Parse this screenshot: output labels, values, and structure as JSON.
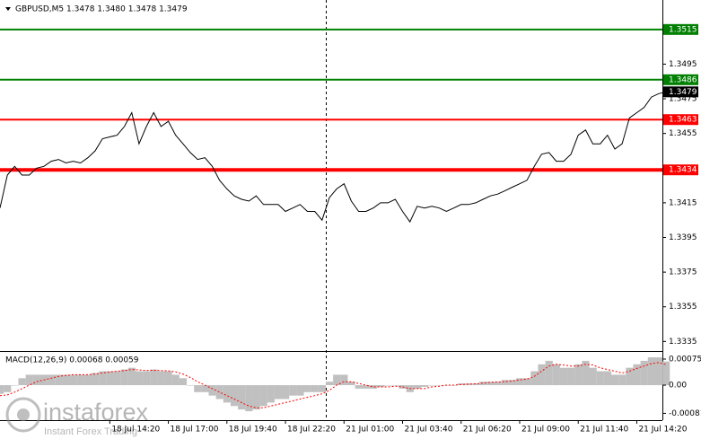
{
  "chart_data": [
    {
      "type": "line",
      "title": "GBPUSD,M5  1.3478 1.3480 1.3478 1.3479",
      "color": "#000000",
      "x": [
        0,
        4,
        8,
        12,
        16,
        20,
        24,
        28,
        32,
        36,
        40,
        44,
        48,
        52,
        56,
        60,
        64,
        68,
        72,
        76,
        80,
        84,
        88,
        92,
        96,
        100,
        104,
        108,
        112,
        116,
        120,
        124,
        128,
        132,
        136,
        140,
        144,
        148,
        152,
        156,
        160,
        164,
        168,
        172,
        176,
        180,
        184,
        188,
        192,
        196,
        200,
        204,
        208,
        212,
        216,
        220,
        224,
        228,
        232,
        236,
        240,
        244,
        248,
        252,
        256,
        260,
        264,
        268,
        272,
        276,
        280,
        284,
        288,
        292,
        296,
        300,
        304,
        308,
        312,
        316,
        320,
        324,
        328,
        332,
        336,
        340,
        344,
        348,
        352,
        356,
        360,
        364
      ],
      "values": [
        1.3412,
        1.3431,
        1.3436,
        1.3431,
        1.3431,
        1.3435,
        1.3436,
        1.3439,
        1.344,
        1.3438,
        1.3439,
        1.3438,
        1.3441,
        1.3445,
        1.3452,
        1.3453,
        1.3454,
        1.3459,
        1.3467,
        1.3449,
        1.3459,
        1.3467,
        1.3459,
        1.3462,
        1.3454,
        1.3449,
        1.3444,
        1.344,
        1.3441,
        1.3436,
        1.3428,
        1.3423,
        1.3419,
        1.3417,
        1.3416,
        1.3419,
        1.3414,
        1.3414,
        1.3414,
        1.341,
        1.3412,
        1.3414,
        1.341,
        1.341,
        1.3405,
        1.3418,
        1.3423,
        1.3426,
        1.3416,
        1.341,
        1.341,
        1.3412,
        1.3415,
        1.3415,
        1.3417,
        1.341,
        1.3404,
        1.3413,
        1.3412,
        1.3413,
        1.3412,
        1.341,
        1.3412,
        1.3414,
        1.3414,
        1.3415,
        1.3417,
        1.3419,
        1.342,
        1.3422,
        1.3424,
        1.3426,
        1.3428,
        1.3436,
        1.3443,
        1.3444,
        1.3439,
        1.3439,
        1.3443,
        1.3454,
        1.3457,
        1.3449,
        1.3449,
        1.3454,
        1.3446,
        1.3449,
        1.3464,
        1.3467,
        1.347,
        1.3476,
        1.3478,
        1.3479
      ],
      "xlim": [
        0,
        362
      ],
      "xticks": [
        {
          "value": 60,
          "label": "18 Jul 14:20"
        },
        {
          "value": 92,
          "label": "18 Jul 17:00"
        },
        {
          "value": 124,
          "label": "18 Jul 19:40"
        },
        {
          "value": 156,
          "label": "18 Jul 22:20"
        },
        {
          "value": 188,
          "label": "21 Jul 01:00"
        },
        {
          "value": 220,
          "label": "21 Jul 03:40"
        },
        {
          "value": 252,
          "label": "21 Jul 06:20"
        },
        {
          "value": 284,
          "label": "21 Jul 09:00"
        },
        {
          "value": 316,
          "label": "21 Jul 11:40"
        },
        {
          "value": 348,
          "label": "21 Jul 14:20"
        }
      ],
      "ylim": [
        1.333,
        1.3532
      ],
      "yticks": [
        1.3495,
        1.3475,
        1.3455,
        1.3415,
        1.3395,
        1.3375,
        1.3355,
        1.3335
      ],
      "levels": [
        {
          "value": 1.3515,
          "color": "#008000"
        },
        {
          "value": 1.3486,
          "color": "#008000"
        },
        {
          "value": 1.3463,
          "color": "#ff0000"
        },
        {
          "value": 1.3434,
          "color": "#ff0000"
        }
      ],
      "current": 1.3479
    },
    {
      "type": "macd",
      "title": "MACD(12,26,9) 0.00068 0.00059",
      "series": [
        {
          "color": "#c0c0c0",
          "values": [
            -0.00025,
            -0.0002,
            0,
            0.0002,
            0.0003,
            0.0003,
            0.0003,
            0.0003,
            0.0003,
            0.0003,
            0.0003,
            0.0003,
            0.0003,
            0.00035,
            0.0004,
            0.0004,
            0.0004,
            0.00045,
            0.0005,
            0.0004,
            0.0004,
            0.00045,
            0.0004,
            0.0004,
            0.0003,
            0.0002,
            0,
            -0.0002,
            -0.0002,
            -0.0003,
            -0.0004,
            -0.0005,
            -0.0006,
            -0.0007,
            -0.00075,
            -0.0007,
            -0.0006,
            -0.0005,
            -0.0004,
            -0.0004,
            -0.0003,
            -0.0003,
            -0.0002,
            -0.0002,
            -0.0002,
            0.0001,
            0.0003,
            0.0003,
            0.0001,
            -0.0001,
            -0.0001,
            -0.0001,
            -5e-05,
            0,
            0,
            -0.0001,
            -0.0002,
            -0.0001,
            -5e-05,
            0,
            0,
            0,
            0,
            5e-05,
            5e-05,
            5e-05,
            0.0001,
            0.0001,
            0.0001,
            0.00015,
            0.00015,
            0.0002,
            0.0002,
            0.0004,
            0.0006,
            0.0007,
            0.0006,
            0.0005,
            0.0005,
            0.0006,
            0.0007,
            0.0005,
            0.0004,
            0.0004,
            0.0003,
            0.0003,
            0.0005,
            0.0006,
            0.0007,
            0.0008,
            0.0008,
            0.00068
          ]
        },
        {
          "color": "#ff0000",
          "values": [
            -0.0003,
            -0.00028,
            -0.0002,
            -0.0001,
            0,
            0.0001,
            0.00015,
            0.0002,
            0.00025,
            0.00028,
            0.0003,
            0.0003,
            0.0003,
            0.00032,
            0.00035,
            0.00038,
            0.0004,
            0.00042,
            0.00045,
            0.00044,
            0.00042,
            0.00043,
            0.00042,
            0.00041,
            0.00038,
            0.00032,
            0.00022,
            0.0001,
            0,
            -0.0001,
            -0.0002,
            -0.0003,
            -0.0004,
            -0.0005,
            -0.0006,
            -0.00065,
            -0.00065,
            -0.0006,
            -0.00055,
            -0.0005,
            -0.00045,
            -0.0004,
            -0.00035,
            -0.0003,
            -0.00025,
            -0.00015,
            0,
            0.0001,
            0.0001,
            5e-05,
            0,
            -5e-05,
            -5e-05,
            -5e-05,
            -3e-05,
            -5e-05,
            -0.0001,
            -0.0001,
            -0.0001,
            -5e-05,
            -3e-05,
            0,
            0,
            2e-05,
            3e-05,
            4e-05,
            6e-05,
            8e-05,
            9e-05,
            0.0001,
            0.00012,
            0.00015,
            0.00017,
            0.00025,
            0.0004,
            0.00055,
            0.0006,
            0.00058,
            0.00055,
            0.00055,
            0.0006,
            0.00058,
            0.0005,
            0.00045,
            0.0004,
            0.00035,
            0.0004,
            0.00048,
            0.00055,
            0.00062,
            0.00065,
            0.00059
          ]
        }
      ],
      "ylim": [
        -0.00098,
        0.00093
      ],
      "yticks": [
        0.00075,
        {
          "value": 0,
          "label": "0.00"
        },
        -0.00081
      ]
    }
  ],
  "watermark": {
    "brand": "instaforex",
    "slogan": "Instant Forex Trading"
  }
}
